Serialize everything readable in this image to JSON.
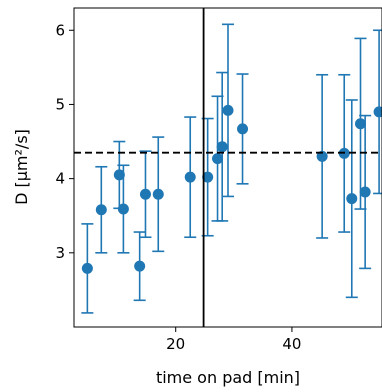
{
  "chart_data": {
    "type": "scatter",
    "xlabel": "time on pad [min]",
    "ylabel": "D [μm²/s]",
    "xlim": [
      2.5,
      55.5
    ],
    "ylim": [
      2.0,
      6.3
    ],
    "xticks": [
      20,
      40
    ],
    "yticks": [
      3,
      4,
      5,
      6
    ],
    "grid": false,
    "legend": "none",
    "marker_color": "#1f77b4",
    "series": [
      {
        "points": [
          {
            "x": 4.8,
            "y": 2.79,
            "err": 0.6
          },
          {
            "x": 7.2,
            "y": 3.58,
            "err": 0.58
          },
          {
            "x": 10.3,
            "y": 4.05,
            "err": 0.45
          },
          {
            "x": 11.0,
            "y": 3.59,
            "err": 0.59
          },
          {
            "x": 13.8,
            "y": 2.82,
            "err": 0.46
          },
          {
            "x": 14.8,
            "y": 3.79,
            "err": 0.58
          },
          {
            "x": 17.0,
            "y": 3.79,
            "err": 0.77
          },
          {
            "x": 22.5,
            "y": 4.02,
            "err": 0.81
          },
          {
            "x": 25.5,
            "y": 4.02,
            "err": 0.79
          },
          {
            "x": 27.2,
            "y": 4.27,
            "err": 0.84
          },
          {
            "x": 28.0,
            "y": 4.43,
            "err": 1.0
          },
          {
            "x": 29.0,
            "y": 4.92,
            "err": 1.16
          },
          {
            "x": 31.5,
            "y": 4.67,
            "err": 0.74
          },
          {
            "x": 45.2,
            "y": 4.3,
            "err": 1.1
          },
          {
            "x": 49.0,
            "y": 4.34,
            "err": 1.06
          },
          {
            "x": 50.3,
            "y": 3.73,
            "err": 1.33
          },
          {
            "x": 51.8,
            "y": 4.74,
            "err": 1.15
          },
          {
            "x": 52.6,
            "y": 3.82,
            "err": 1.03
          },
          {
            "x": 55.0,
            "y": 4.9,
            "err": 1.1
          }
        ]
      }
    ],
    "hline": {
      "y": 4.35,
      "style": "dashed",
      "color": "#000000"
    },
    "vline": {
      "x": 24.8,
      "style": "solid",
      "color": "#000000"
    }
  }
}
